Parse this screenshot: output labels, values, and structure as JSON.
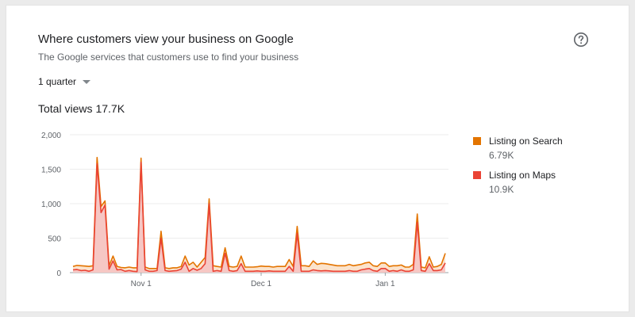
{
  "card": {
    "title": "Where customers view your business on Google",
    "subtitle": "The Google services that customers use to find your business",
    "help_icon": "help-circle-icon"
  },
  "range_selector": {
    "label": "1 quarter",
    "icon": "caret-down-icon"
  },
  "total": {
    "label": "Total views",
    "value": "17.7K"
  },
  "legend": [
    {
      "name": "Listing on Search",
      "value": "6.79K",
      "color": "#e37400"
    },
    {
      "name": "Listing on Maps",
      "value": "10.9K",
      "color": "#ea4335"
    }
  ],
  "chart_data": {
    "type": "area",
    "stacked": true,
    "yticks": [
      "0",
      "500",
      "1,000",
      "1,500",
      "2,000"
    ],
    "ylim": [
      0,
      2000
    ],
    "xticks": [
      {
        "label": "Nov 1",
        "index": 17
      },
      {
        "label": "Dec 1",
        "index": 47
      },
      {
        "label": "Jan 1",
        "index": 78
      }
    ],
    "grid": true,
    "legend_position": "right",
    "series": [
      {
        "name": "Listing on Maps",
        "color": "#ea4335",
        "fill": "#f6c7c4",
        "values": [
          40,
          45,
          30,
          35,
          20,
          40,
          1580,
          870,
          980,
          50,
          170,
          40,
          45,
          20,
          30,
          20,
          15,
          1600,
          40,
          20,
          20,
          30,
          500,
          30,
          20,
          25,
          30,
          50,
          150,
          20,
          60,
          35,
          60,
          130,
          1000,
          20,
          30,
          20,
          280,
          30,
          20,
          30,
          130,
          20,
          20,
          20,
          25,
          20,
          20,
          25,
          20,
          20,
          20,
          20,
          90,
          20,
          570,
          20,
          20,
          20,
          40,
          30,
          25,
          30,
          25,
          20,
          20,
          20,
          20,
          30,
          20,
          20,
          40,
          50,
          60,
          30,
          20,
          60,
          60,
          20,
          30,
          20,
          40,
          20,
          20,
          40,
          730,
          30,
          20,
          130,
          30,
          30,
          40,
          140
        ]
      },
      {
        "name": "Listing on Search",
        "color": "#e37400",
        "values": [
          50,
          60,
          70,
          60,
          70,
          60,
          90,
          90,
          60,
          50,
          70,
          50,
          30,
          50,
          50,
          50,
          55,
          60,
          40,
          40,
          40,
          30,
          100,
          40,
          40,
          45,
          40,
          40,
          90,
          90,
          90,
          45,
          90,
          90,
          70,
          80,
          60,
          60,
          80,
          60,
          60,
          60,
          110,
          60,
          60,
          60,
          60,
          75,
          70,
          65,
          60,
          70,
          70,
          70,
          100,
          70,
          100,
          80,
          80,
          70,
          130,
          90,
          110,
          100,
          95,
          90,
          80,
          80,
          80,
          90,
          80,
          90,
          80,
          90,
          90,
          70,
          70,
          80,
          80,
          70,
          70,
          80,
          70,
          60,
          60,
          80,
          120,
          50,
          50,
          100,
          50,
          60,
          80,
          140
        ]
      }
    ]
  }
}
